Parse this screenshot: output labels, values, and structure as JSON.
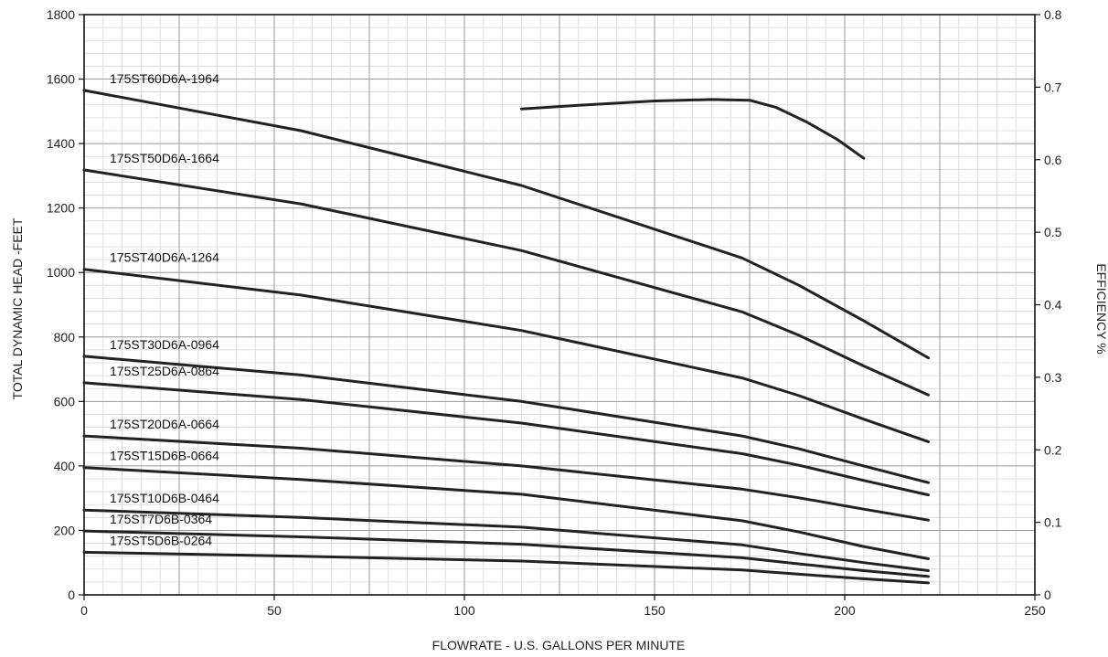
{
  "chart_data": {
    "type": "line",
    "title": "",
    "xlabel": "FLOWRATE - U.S. GALLONS PER MINUTE",
    "ylabel": "TOTAL DYNAMIC HEAD -FEET",
    "y2label": "EFFICIENCY %",
    "xlim": [
      0,
      250
    ],
    "ylim": [
      0,
      1800
    ],
    "y2lim": [
      0,
      0.8
    ],
    "xticks": [
      "0",
      "50",
      "100",
      "150",
      "200",
      "250"
    ],
    "yticks": [
      "0",
      "200",
      "400",
      "600",
      "800",
      "1000",
      "1200",
      "1400",
      "1600",
      "1800"
    ],
    "y2ticks": [
      "0",
      "0.1",
      "0.2",
      "0.3",
      "0.4",
      "0.5",
      "0.6",
      "0.7",
      "0.8"
    ],
    "grid": true,
    "line_color": "#222222",
    "series": [
      {
        "name": "175ST60D6A-1964",
        "axis": "left",
        "x": [
          0,
          57,
          115,
          173,
          188,
          205,
          222
        ],
        "y": [
          1565,
          1440,
          1270,
          1045,
          960,
          850,
          735
        ]
      },
      {
        "name": "175ST50D6A-1664",
        "axis": "left",
        "x": [
          0,
          57,
          115,
          173,
          188,
          205,
          222
        ],
        "y": [
          1318,
          1213,
          1068,
          878,
          805,
          710,
          620
        ]
      },
      {
        "name": "175ST40D6A-1264",
        "axis": "left",
        "x": [
          0,
          57,
          115,
          173,
          188,
          205,
          222
        ],
        "y": [
          1010,
          930,
          820,
          673,
          618,
          545,
          475
        ]
      },
      {
        "name": "175ST30D6A-0964",
        "axis": "left",
        "x": [
          0,
          57,
          115,
          173,
          188,
          205,
          222
        ],
        "y": [
          740,
          682,
          600,
          493,
          453,
          400,
          348
        ]
      },
      {
        "name": "175ST25D6A-0864",
        "axis": "left",
        "x": [
          0,
          57,
          115,
          173,
          188,
          205,
          222
        ],
        "y": [
          658,
          606,
          533,
          438,
          402,
          355,
          310
        ]
      },
      {
        "name": "175ST20D6A-0664",
        "axis": "left",
        "x": [
          0,
          57,
          115,
          173,
          188,
          205,
          222
        ],
        "y": [
          493,
          455,
          400,
          328,
          301,
          266,
          232
        ]
      },
      {
        "name": "175ST15D6B-0664",
        "axis": "left",
        "x": [
          0,
          57,
          115,
          173,
          188,
          205,
          222
        ],
        "y": [
          395,
          358,
          312,
          230,
          195,
          150,
          112
        ]
      },
      {
        "name": "175ST10D6B-0464",
        "axis": "left",
        "x": [
          0,
          57,
          115,
          173,
          188,
          205,
          222
        ],
        "y": [
          263,
          240,
          210,
          155,
          128,
          100,
          75
        ]
      },
      {
        "name": "175ST7D6B-0364",
        "axis": "left",
        "x": [
          0,
          57,
          115,
          173,
          188,
          205,
          222
        ],
        "y": [
          198,
          180,
          157,
          115,
          96,
          75,
          57
        ]
      },
      {
        "name": "175ST5D6B-0264",
        "axis": "left",
        "x": [
          0,
          57,
          115,
          173,
          188,
          205,
          222
        ],
        "y": [
          132,
          120,
          105,
          77,
          64,
          50,
          37
        ]
      },
      {
        "name": "",
        "axis": "right",
        "x": [
          115,
          130,
          150,
          165,
          175,
          182,
          190,
          198,
          205
        ],
        "y": [
          0.67,
          0.675,
          0.681,
          0.683,
          0.682,
          0.672,
          0.652,
          0.628,
          0.602
        ]
      }
    ]
  }
}
